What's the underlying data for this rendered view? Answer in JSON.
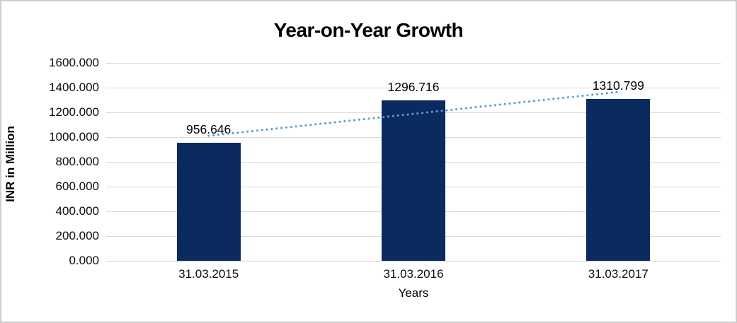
{
  "window": {
    "background": "#ffffff",
    "border_color": "#cdcdcd"
  },
  "chart_data": {
    "type": "bar",
    "title": "Year-on-Year Growth",
    "categories": [
      "31.03.2015",
      "31.03.2016",
      "31.03.2017"
    ],
    "series": [
      {
        "name": "INR in Million",
        "values": [
          956.646,
          1296.716,
          1310.799
        ]
      }
    ],
    "data_labels": [
      "956.646",
      "1296.716",
      "1310.799"
    ],
    "xlabel": "Years",
    "ylabel": "INR in Million",
    "ylim": [
      0,
      1600
    ],
    "ytick_step": 200,
    "yticks": [
      {
        "value": 1600,
        "label": "1600.000"
      },
      {
        "value": 1400,
        "label": "1400.000"
      },
      {
        "value": 1200,
        "label": "1200.000"
      },
      {
        "value": 1000,
        "label": "1000.000"
      },
      {
        "value": 800,
        "label": "800.000"
      },
      {
        "value": 600,
        "label": "600.000"
      },
      {
        "value": 400,
        "label": "400.000"
      },
      {
        "value": 200,
        "label": "200.000"
      },
      {
        "value": 0,
        "label": "0.000"
      }
    ],
    "grid": true,
    "legend": "none",
    "colors": {
      "bar": "#0b2a60",
      "gridline": "#d9d9d9",
      "axis_line": "#cfcfcf",
      "text": "#000000",
      "trendline": "#5b9bd5"
    },
    "trendline": {
      "type": "linear",
      "line_style": "dotted",
      "color": "#5b9bd5",
      "fit_values": [
        1010.97,
        1188.05,
        1365.13
      ]
    }
  }
}
